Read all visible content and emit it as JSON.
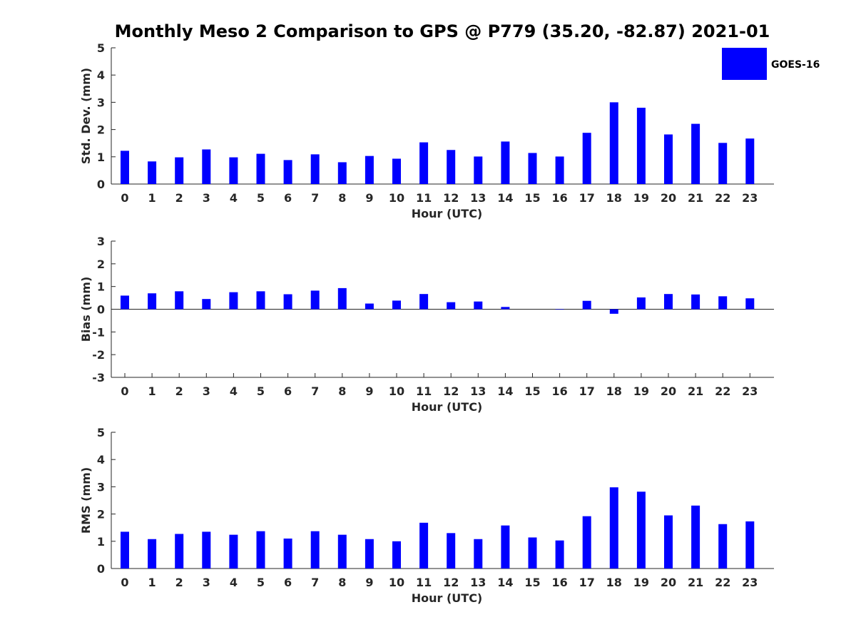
{
  "title": "Monthly Meso 2 Comparison to GPS @ P779 (35.20, -82.87) 2021-01",
  "colors": {
    "bar": "#0000ff",
    "axis": "#262626"
  },
  "chart_data": [
    {
      "type": "bar",
      "categories": [
        "0",
        "1",
        "2",
        "3",
        "4",
        "5",
        "6",
        "7",
        "8",
        "9",
        "10",
        "11",
        "12",
        "13",
        "14",
        "15",
        "16",
        "17",
        "18",
        "19",
        "20",
        "21",
        "22",
        "23"
      ],
      "xlabel": "Hour (UTC)",
      "ylabel": "Std. Dev. (mm)",
      "ylim": [
        0,
        5
      ],
      "yticks": [
        "0",
        "1",
        "2",
        "3",
        "4",
        "5"
      ],
      "series": [
        {
          "name": "GOES-16",
          "values": [
            1.22,
            0.83,
            0.98,
            1.27,
            0.98,
            1.11,
            0.88,
            1.09,
            0.8,
            1.03,
            0.93,
            1.53,
            1.25,
            1.01,
            1.56,
            1.14,
            1.01,
            1.88,
            3.0,
            2.8,
            1.82,
            2.21,
            1.51,
            1.67
          ]
        }
      ],
      "legend": {
        "position": "top-right",
        "entries": [
          "GOES-16"
        ]
      }
    },
    {
      "type": "bar",
      "categories": [
        "0",
        "1",
        "2",
        "3",
        "4",
        "5",
        "6",
        "7",
        "8",
        "9",
        "10",
        "11",
        "12",
        "13",
        "14",
        "15",
        "16",
        "17",
        "18",
        "19",
        "20",
        "21",
        "22",
        "23"
      ],
      "xlabel": "Hour (UTC)",
      "ylabel": "Bias (mm)",
      "ylim": [
        -3,
        3
      ],
      "yticks": [
        "-3",
        "-2",
        "-1",
        "0",
        "1",
        "2",
        "3"
      ],
      "series": [
        {
          "name": "GOES-16",
          "values": [
            0.6,
            0.7,
            0.79,
            0.45,
            0.75,
            0.79,
            0.66,
            0.82,
            0.93,
            0.25,
            0.38,
            0.67,
            0.31,
            0.34,
            0.1,
            0.0,
            -0.02,
            0.37,
            -0.2,
            0.52,
            0.67,
            0.65,
            0.57,
            0.48
          ]
        }
      ],
      "zero_line": true
    },
    {
      "type": "bar",
      "categories": [
        "0",
        "1",
        "2",
        "3",
        "4",
        "5",
        "6",
        "7",
        "8",
        "9",
        "10",
        "11",
        "12",
        "13",
        "14",
        "15",
        "16",
        "17",
        "18",
        "19",
        "20",
        "21",
        "22",
        "23"
      ],
      "xlabel": "Hour (UTC)",
      "ylabel": "RMS (mm)",
      "ylim": [
        0,
        5
      ],
      "yticks": [
        "0",
        "1",
        "2",
        "3",
        "4",
        "5"
      ],
      "series": [
        {
          "name": "GOES-16",
          "values": [
            1.35,
            1.08,
            1.27,
            1.35,
            1.24,
            1.37,
            1.1,
            1.37,
            1.24,
            1.08,
            1.0,
            1.68,
            1.3,
            1.08,
            1.58,
            1.14,
            1.03,
            1.92,
            2.98,
            2.82,
            1.95,
            2.31,
            1.63,
            1.73
          ]
        }
      ]
    }
  ]
}
